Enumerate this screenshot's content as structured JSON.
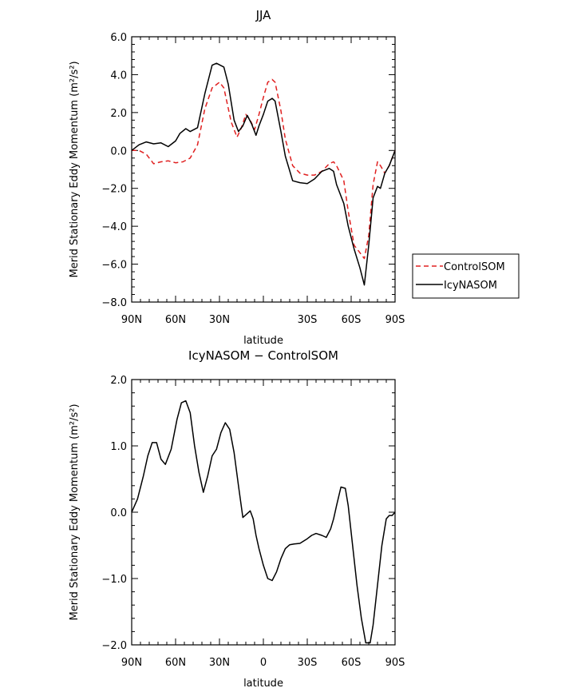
{
  "chart_data": [
    {
      "type": "line",
      "title": "JJA",
      "xlabel": "latitude",
      "ylabel": "Merid Stationary Eddy Momentum (m²/s²)",
      "xlim": [
        90,
        -90
      ],
      "ylim": [
        -8,
        6
      ],
      "xticks": [
        90,
        60,
        30,
        0,
        -30,
        -60,
        -90
      ],
      "xtick_labels": [
        "90N",
        "60N",
        "30N",
        "",
        "30S",
        "60S",
        "90S"
      ],
      "yticks": [
        -8,
        -6,
        -4,
        -2,
        0,
        2,
        4,
        6
      ],
      "ytick_labels": [
        "−8.0",
        "−6.0",
        "−4.0",
        "−2.0",
        "0.0",
        "2.0",
        "4.0",
        "6.0"
      ],
      "legend": {
        "placement": "right",
        "entries": [
          "ControlSOM",
          "IcyNASOM"
        ]
      },
      "series": [
        {
          "name": "ControlSOM",
          "color": "#e02020",
          "dash": true,
          "x": [
            90,
            85,
            80,
            75,
            70,
            65,
            60,
            55,
            50,
            45,
            40,
            35,
            30,
            27,
            22,
            18,
            15,
            12,
            9,
            6,
            3,
            0,
            -3,
            -6,
            -8,
            -12,
            -15,
            -20,
            -25,
            -30,
            -35,
            -40,
            -45,
            -48,
            -50,
            -55,
            -58,
            -62,
            -66,
            -69,
            -72,
            -75,
            -78,
            -80,
            -83,
            -86,
            -90
          ],
          "y": [
            0.0,
            0.0,
            -0.2,
            -0.7,
            -0.6,
            -0.55,
            -0.65,
            -0.6,
            -0.4,
            0.3,
            2.2,
            3.3,
            3.6,
            3.3,
            1.5,
            0.7,
            1.2,
            1.9,
            1.6,
            1.1,
            1.9,
            2.8,
            3.6,
            3.75,
            3.6,
            2.1,
            0.6,
            -0.8,
            -1.2,
            -1.3,
            -1.3,
            -1.1,
            -0.7,
            -0.6,
            -0.8,
            -1.6,
            -3.2,
            -5.0,
            -5.4,
            -5.7,
            -4.5,
            -1.8,
            -0.6,
            -0.8,
            -1.2,
            -0.8,
            0.0
          ]
        },
        {
          "name": "IcyNASOM",
          "color": "#000000",
          "dash": false,
          "x": [
            90,
            85,
            80,
            75,
            70,
            65,
            60,
            57,
            53,
            50,
            45,
            40,
            35,
            32,
            27,
            24,
            20,
            17,
            14,
            11,
            8,
            5,
            3,
            0,
            -3,
            -6,
            -8,
            -12,
            -15,
            -20,
            -25,
            -30,
            -35,
            -40,
            -45,
            -48,
            -50,
            -55,
            -58,
            -62,
            -66,
            -69,
            -72,
            -75,
            -78,
            -80,
            -83,
            -86,
            -90
          ],
          "y": [
            0.0,
            0.3,
            0.45,
            0.35,
            0.4,
            0.2,
            0.5,
            0.9,
            1.15,
            1.0,
            1.2,
            3.0,
            4.5,
            4.6,
            4.4,
            3.5,
            1.6,
            1.0,
            1.3,
            1.85,
            1.4,
            0.8,
            1.3,
            1.9,
            2.6,
            2.75,
            2.6,
            1.0,
            -0.3,
            -1.6,
            -1.7,
            -1.75,
            -1.5,
            -1.1,
            -0.95,
            -1.1,
            -1.8,
            -2.8,
            -4.0,
            -5.2,
            -6.2,
            -7.1,
            -5.0,
            -2.5,
            -1.9,
            -2.0,
            -1.2,
            -0.8,
            0.0
          ]
        }
      ]
    },
    {
      "type": "line",
      "title": "IcyNASOM − ControlSOM",
      "xlabel": "latitude",
      "ylabel": "Merid Stationary Eddy Momentum (m²/s²)",
      "xlim": [
        90,
        -90
      ],
      "ylim": [
        -2,
        2
      ],
      "xticks": [
        90,
        60,
        30,
        0,
        -30,
        -60,
        -90
      ],
      "xtick_labels": [
        "90N",
        "60N",
        "30N",
        "0",
        "30S",
        "60S",
        "90S"
      ],
      "yticks": [
        -2,
        -1,
        0,
        1,
        2
      ],
      "ytick_labels": [
        "−2.0",
        "−1.0",
        "0.0",
        "1.0",
        "2.0"
      ],
      "series": [
        {
          "color": "#000000",
          "dash": false,
          "x": [
            90,
            86,
            82,
            79,
            76,
            73,
            70,
            67,
            63,
            59,
            56,
            53,
            50,
            47,
            44,
            41,
            38,
            35,
            32,
            29,
            26,
            23,
            20,
            17,
            14,
            11,
            9,
            7,
            5,
            3,
            0,
            -3,
            -6,
            -9,
            -12,
            -15,
            -18,
            -21,
            -25,
            -30,
            -33,
            -36,
            -40,
            -43,
            -46,
            -48,
            -50,
            -53,
            -56,
            -58,
            -61,
            -64,
            -67,
            -70,
            -73,
            -75,
            -78,
            -81,
            -84,
            -86,
            -88,
            -90
          ],
          "y": [
            0.0,
            0.2,
            0.55,
            0.85,
            1.05,
            1.05,
            0.8,
            0.72,
            0.95,
            1.4,
            1.65,
            1.68,
            1.5,
            1.0,
            0.6,
            0.3,
            0.55,
            0.85,
            0.95,
            1.2,
            1.35,
            1.25,
            0.9,
            0.4,
            -0.08,
            -0.02,
            0.02,
            -0.1,
            -0.35,
            -0.55,
            -0.8,
            -1.0,
            -1.03,
            -0.9,
            -0.7,
            -0.55,
            -0.49,
            -0.48,
            -0.47,
            -0.4,
            -0.35,
            -0.32,
            -0.35,
            -0.38,
            -0.25,
            -0.1,
            0.1,
            0.38,
            0.36,
            0.1,
            -0.5,
            -1.1,
            -1.6,
            -1.97,
            -1.97,
            -1.7,
            -1.1,
            -0.5,
            -0.1,
            -0.05,
            -0.05,
            0.0
          ]
        }
      ]
    }
  ]
}
